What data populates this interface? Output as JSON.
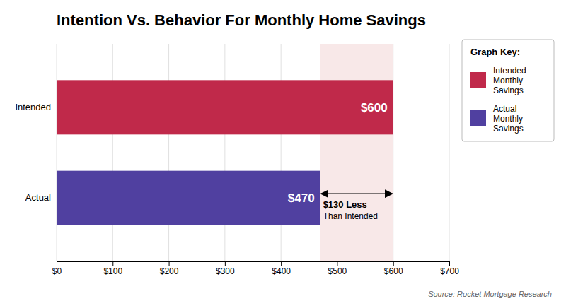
{
  "chart_data": {
    "type": "bar",
    "orientation": "horizontal",
    "title": "Intention Vs. Behavior For Monthly Home Savings",
    "categories": [
      "Intended",
      "Actual"
    ],
    "values": [
      600,
      470
    ],
    "colors": [
      "#c0294a",
      "#5040a0"
    ],
    "data_labels": true,
    "value_labels": [
      "$600",
      "$470"
    ],
    "xlim": [
      0,
      700
    ],
    "xticks": [
      {
        "value": 0,
        "label": "$0"
      },
      {
        "value": 100,
        "label": "$100"
      },
      {
        "value": 200,
        "label": "$200"
      },
      {
        "value": 300,
        "label": "$300"
      },
      {
        "value": 400,
        "label": "$400"
      },
      {
        "value": 500,
        "label": "$500"
      },
      {
        "value": 600,
        "label": "$600"
      },
      {
        "value": 700,
        "label": "$700"
      }
    ],
    "grid": true,
    "annotations": [
      {
        "text": "$130 Less",
        "subtext": "Than Intended",
        "x": [
          470,
          600
        ]
      }
    ],
    "source": "Source: Rocket Mortgage Research",
    "legend": "upper right",
    "legend_title": "Graph Key:",
    "legend_labels": [
      "Intended\nMonthly\nSavings",
      "Actual\nMonthly\nSavings"
    ]
  }
}
